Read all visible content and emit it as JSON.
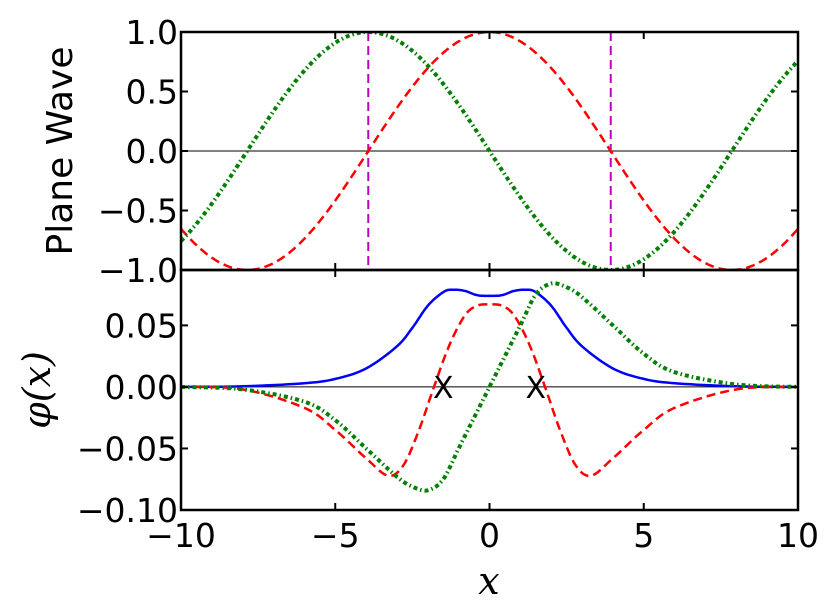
{
  "chart_data": [
    {
      "type": "line",
      "ylabel": "Plane Wave",
      "xlim": [
        -10,
        10
      ],
      "ylim": [
        -1.0,
        1.0
      ],
      "yticks": [
        "1.0",
        "0.5",
        "0.0",
        "−0.5",
        "−1.0"
      ],
      "ytick_values": [
        1.0,
        0.5,
        0.0,
        -0.5,
        -1.0
      ],
      "grid": false,
      "series": [
        {
          "style": "dashed",
          "color": "#ff0000",
          "wave": "cos",
          "k": 0.4,
          "amplitude": 1.0
        },
        {
          "style": "dash-dot",
          "color": "#008000",
          "wave": "-sin",
          "k": 0.4,
          "amplitude": 1.0
        }
      ],
      "vertical_lines": [
        {
          "x": -3.93,
          "color": "#bf00bf",
          "style": "dashed"
        },
        {
          "x": 3.93,
          "color": "#bf00bf",
          "style": "dashed"
        }
      ],
      "hline": 0.0
    },
    {
      "type": "line",
      "ylabel": "φ(x)",
      "xlabel": "x",
      "xlim": [
        -10,
        10
      ],
      "ylim": [
        -0.1,
        0.095
      ],
      "xticks": [
        "−10",
        "−5",
        "0",
        "5",
        "10"
      ],
      "xtick_values": [
        -10,
        -5,
        0,
        5,
        10
      ],
      "yticks": [
        "0.05",
        "0.00",
        "−0.05",
        "−0.10"
      ],
      "ytick_values": [
        0.05,
        0.0,
        -0.05,
        -0.1
      ],
      "grid": false,
      "series": [
        {
          "style": "solid",
          "color": "#0000ff",
          "x": [
            -10,
            -8,
            -6,
            -5,
            -4,
            -3,
            -2.5,
            -2,
            -1.5,
            -1.2,
            -0.8,
            -0.4,
            0,
            0.4,
            0.8,
            1.2,
            1.5,
            2,
            2.5,
            3,
            4,
            5,
            6,
            8,
            10
          ],
          "y": [
            0.0,
            0.0005,
            0.003,
            0.0065,
            0.015,
            0.033,
            0.048,
            0.066,
            0.077,
            0.079,
            0.078,
            0.0745,
            0.074,
            0.0745,
            0.078,
            0.079,
            0.077,
            0.066,
            0.048,
            0.033,
            0.015,
            0.0065,
            0.003,
            0.0005,
            0.0
          ]
        },
        {
          "style": "dashed",
          "color": "#ff0000",
          "x": [
            -10,
            -8,
            -6,
            -5,
            -4,
            -3.3,
            -2.8,
            -2.3,
            -1.8,
            -1.3,
            -0.8,
            -0.4,
            0,
            0.4,
            0.8,
            1.3,
            1.8,
            2.3,
            2.8,
            3.3,
            4,
            5,
            6,
            8,
            10
          ],
          "y": [
            0.0,
            -0.002,
            -0.017,
            -0.035,
            -0.058,
            -0.072,
            -0.064,
            -0.036,
            0.0,
            0.034,
            0.058,
            0.066,
            0.067,
            0.066,
            0.058,
            0.034,
            0.0,
            -0.036,
            -0.064,
            -0.072,
            -0.058,
            -0.035,
            -0.017,
            -0.002,
            0.0
          ]
        },
        {
          "style": "dash-dot",
          "color": "#008000",
          "x": [
            -10,
            -8,
            -6,
            -5,
            -4,
            -3,
            -2.5,
            -2.0,
            -1.5,
            -1.0,
            -0.5,
            0,
            0.5,
            1.0,
            1.5,
            2.0,
            2.5,
            3,
            4,
            5,
            6,
            8,
            10
          ],
          "y": [
            0.0,
            -0.002,
            -0.012,
            -0.027,
            -0.05,
            -0.073,
            -0.081,
            -0.084,
            -0.075,
            -0.05,
            -0.025,
            0.0,
            0.025,
            0.05,
            0.075,
            0.084,
            0.081,
            0.073,
            0.05,
            0.027,
            0.012,
            0.002,
            0.0
          ]
        }
      ],
      "markers": [
        {
          "x": -1.5,
          "y": 0.0,
          "label": "X"
        },
        {
          "x": 1.5,
          "y": 0.0,
          "label": "X"
        }
      ],
      "hline": 0.0
    }
  ]
}
